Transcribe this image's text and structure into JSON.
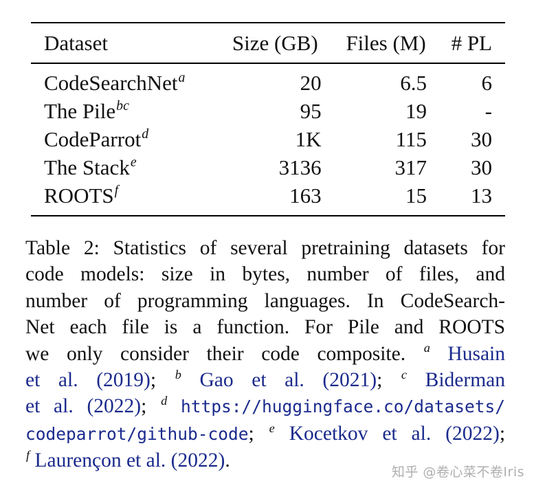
{
  "table": {
    "headers": [
      "Dataset",
      "Size (GB)",
      "Files (M)",
      "# PL"
    ],
    "rows": [
      {
        "name": "CodeSearchNet",
        "sup": "a",
        "size": "20",
        "files": "6.5",
        "pl": "6"
      },
      {
        "name": "The Pile",
        "sup": "bc",
        "size": "95",
        "files": "19",
        "pl": "-"
      },
      {
        "name": "CodeParrot",
        "sup": "d",
        "size": "1K",
        "files": "115",
        "pl": "30"
      },
      {
        "name": "The Stack",
        "sup": "e",
        "size": "3136",
        "files": "317",
        "pl": "30"
      },
      {
        "name": "ROOTS",
        "sup": "f",
        "size": "163",
        "files": "15",
        "pl": "13"
      }
    ]
  },
  "caption": {
    "l1": "Table 2: Statistics of several pretraining datasets for",
    "l2": "code models: size in bytes, number of files, and",
    "l3": "number of programming languages. In CodeSearch-",
    "l4": "Net each file is a function. For Pile and ROOTS",
    "l5_text": "we only consider their code composite.",
    "l5_sup": "a",
    "l5_cite": "Husain",
    "l6_cite1": "et al. (2019)",
    "l6_sep1": ";",
    "l6_sup": "b",
    "l6_cite2": "Gao et al. (2021)",
    "l6_sep2": ";",
    "l6_sup2": "c",
    "l6_cite3": "Biderman",
    "l7_cite": "et al. (2022)",
    "l7_sep": ";",
    "l7_sup": "d",
    "l7_url": "https://huggingface.co/datasets/",
    "l8_url": "codeparrot/github-code",
    "l8_sep": ";",
    "l8_sup": "e",
    "l8_cite": "Kocetkov et al. (2022)",
    "l8_end": ";",
    "l9_sup": "f",
    "l9_cite": "Laurençon et al. (2022)",
    "l9_end": "."
  },
  "watermark": "知乎 @卷心菜不卷Iris"
}
